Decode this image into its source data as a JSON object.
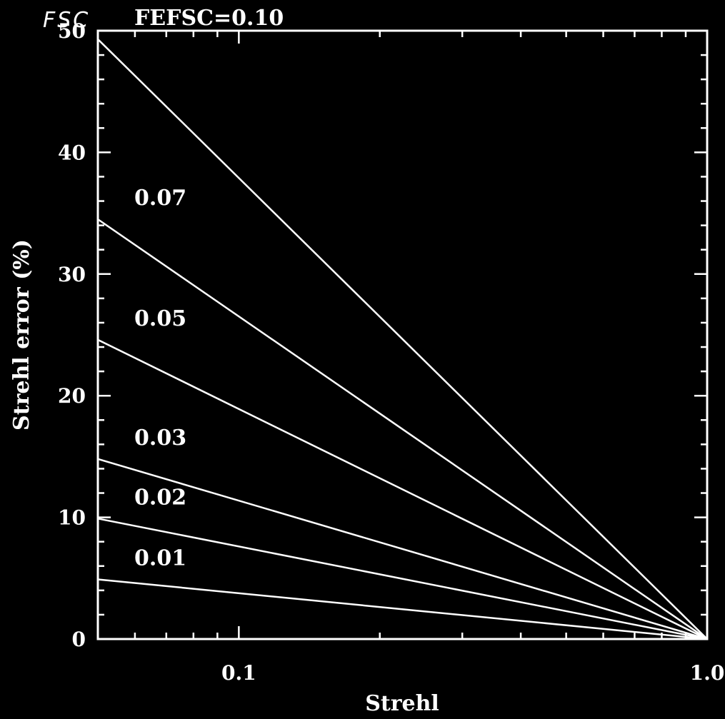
{
  "chart_data": {
    "type": "line",
    "corner_title": "FSC",
    "xlabel": "Strehl",
    "ylabel": "Strehl error (%)",
    "xscale": "log",
    "xlim": [
      0.05,
      1.0
    ],
    "ylim": [
      0,
      50
    ],
    "x_tick_labels": [
      "0.1",
      "1.0"
    ],
    "y_tick_labels": [
      "0",
      "10",
      "20",
      "30",
      "40",
      "50"
    ],
    "series": [
      {
        "name": "FEFSC=0.10",
        "x": [
          0.05,
          1.0
        ],
        "y": [
          49.3,
          0
        ]
      },
      {
        "name": "0.07",
        "x": [
          0.05,
          1.0
        ],
        "y": [
          34.5,
          0
        ]
      },
      {
        "name": "0.05",
        "x": [
          0.05,
          1.0
        ],
        "y": [
          24.6,
          0
        ]
      },
      {
        "name": "0.03",
        "x": [
          0.05,
          1.0
        ],
        "y": [
          14.8,
          0
        ]
      },
      {
        "name": "0.02",
        "x": [
          0.05,
          1.0
        ],
        "y": [
          9.9,
          0
        ]
      },
      {
        "name": "0.01",
        "x": [
          0.05,
          1.0
        ],
        "y": [
          4.9,
          0
        ]
      }
    ],
    "colors": {
      "background": "#000000",
      "foreground": "#ffffff"
    },
    "grid": false
  }
}
